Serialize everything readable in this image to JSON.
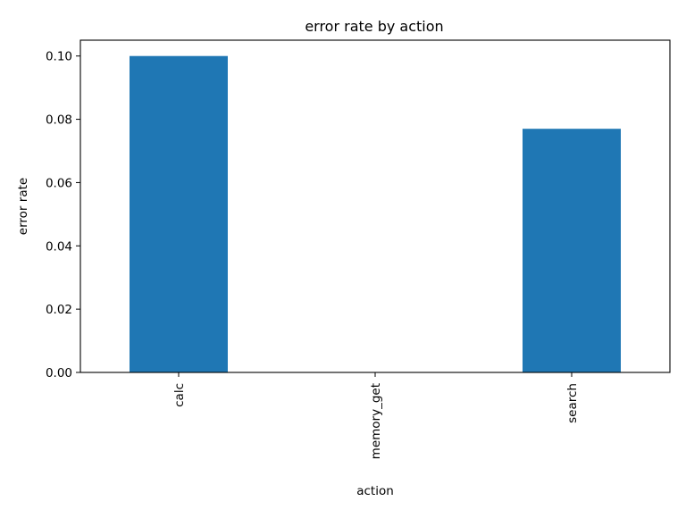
{
  "chart_data": {
    "type": "bar",
    "title": "error rate by action",
    "xlabel": "action",
    "ylabel": "error rate",
    "categories": [
      "calc",
      "memory_get",
      "search"
    ],
    "values": [
      0.1,
      0.0,
      0.077
    ],
    "ylim": [
      0,
      0.105
    ],
    "yticks": [
      0.0,
      0.02,
      0.04,
      0.06,
      0.08,
      0.1
    ],
    "ytick_labels": [
      "0.00",
      "0.02",
      "0.04",
      "0.06",
      "0.08",
      "0.10"
    ],
    "bar_color": "#1f77b4",
    "grid": false,
    "legend": false
  }
}
